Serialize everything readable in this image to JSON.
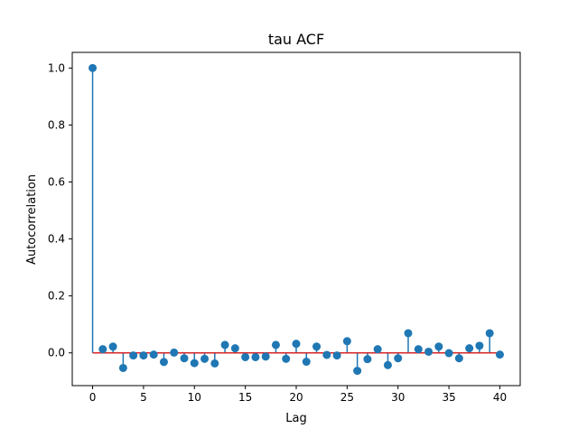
{
  "chart_data": {
    "type": "stem",
    "title": "tau ACF",
    "xlabel": "Lag",
    "ylabel": "Autocorrelation",
    "xlim": [
      -2,
      42
    ],
    "ylim": [
      -0.115,
      1.055
    ],
    "xticks": [
      0,
      5,
      10,
      15,
      20,
      25,
      30,
      35,
      40
    ],
    "yticks": [
      0.0,
      0.2,
      0.4,
      0.6,
      0.8,
      1.0
    ],
    "xtick_labels": [
      "0",
      "5",
      "10",
      "15",
      "20",
      "25",
      "30",
      "35",
      "40"
    ],
    "ytick_labels": [
      "0.0",
      "0.2",
      "0.4",
      "0.6",
      "0.8",
      "1.0"
    ],
    "grid": false,
    "marker_color": "#1f77b4",
    "baseline_color": "#d62728",
    "x": [
      0,
      1,
      2,
      3,
      4,
      5,
      6,
      7,
      8,
      9,
      10,
      11,
      12,
      13,
      14,
      15,
      16,
      17,
      18,
      19,
      20,
      21,
      22,
      23,
      24,
      25,
      26,
      27,
      28,
      29,
      30,
      31,
      32,
      33,
      34,
      35,
      36,
      37,
      38,
      39,
      40
    ],
    "values": [
      1.0,
      0.013,
      0.022,
      -0.053,
      -0.009,
      -0.009,
      -0.006,
      -0.032,
      0.001,
      -0.019,
      -0.036,
      -0.021,
      -0.037,
      0.028,
      0.016,
      -0.015,
      -0.015,
      -0.013,
      0.028,
      -0.021,
      0.032,
      -0.031,
      0.022,
      -0.007,
      -0.009,
      0.041,
      -0.063,
      -0.022,
      0.013,
      -0.043,
      -0.019,
      0.069,
      0.013,
      0.004,
      0.022,
      -0.001,
      -0.019,
      0.016,
      0.025,
      0.069,
      -0.006
    ]
  }
}
